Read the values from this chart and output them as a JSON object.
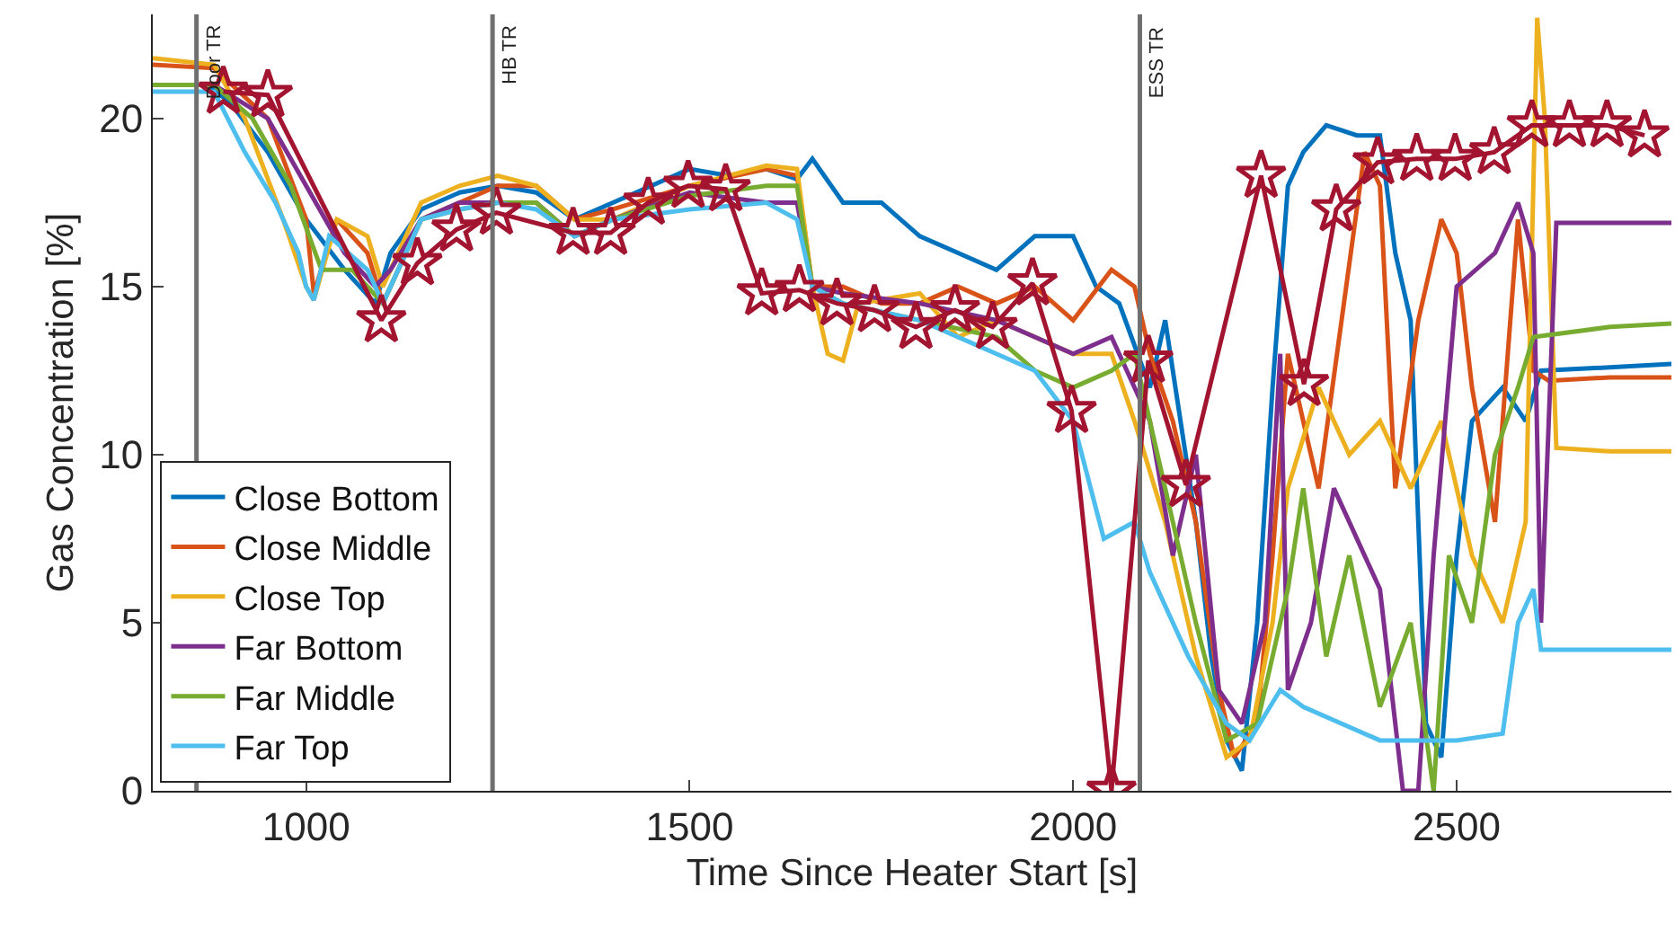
{
  "chart_data": {
    "type": "line",
    "xlabel": "Time Since Heater Start [s]",
    "ylabel": "Gas Concentration [%]",
    "xlim": [
      800,
      2780
    ],
    "xticks": [
      1000,
      1500,
      2000,
      2500
    ],
    "ylim": [
      0,
      23.1
    ],
    "yticks": [
      0,
      5,
      10,
      15,
      20
    ],
    "grid": false,
    "legend": "bottom left",
    "marker": "none",
    "line_style": "solid",
    "ref_lines": [
      {
        "axis": "x",
        "value": 857,
        "label": "Door TR",
        "color": "#707070"
      },
      {
        "axis": "x",
        "value": 1243,
        "label": "HB TR",
        "color": "#707070"
      },
      {
        "axis": "x",
        "value": 2087,
        "label": "ESS TR",
        "color": "#707070"
      }
    ],
    "series": [
      {
        "name": "Close Bottom",
        "color": "#0072bd",
        "x": [
          800,
          870,
          900,
          950,
          1000,
          1050,
          1090,
          1110,
          1150,
          1200,
          1250,
          1300,
          1350,
          1400,
          1450,
          1500,
          1550,
          1600,
          1640,
          1660,
          1700,
          1750,
          1800,
          1850,
          1900,
          1950,
          2000,
          2030,
          2060,
          2100,
          2120,
          2140,
          2160,
          2180,
          2200,
          2220,
          2240,
          2260,
          2280,
          2300,
          2330,
          2370,
          2400,
          2420,
          2440,
          2460,
          2480,
          2500,
          2520,
          2560,
          2590,
          2610,
          2700,
          2780
        ],
        "values": [
          21,
          21,
          20.5,
          19,
          17,
          15.5,
          14.5,
          16,
          17.3,
          17.8,
          18,
          17.8,
          17,
          17.5,
          18,
          18.5,
          18.3,
          18.5,
          18.2,
          18.8,
          17.5,
          17.5,
          16.5,
          16,
          15.5,
          16.5,
          16.5,
          15,
          14.5,
          12,
          14,
          11,
          8,
          4,
          1.5,
          0.6,
          5,
          12,
          18,
          19,
          19.8,
          19.5,
          19.5,
          16,
          14,
          2,
          1,
          7,
          11,
          12,
          11,
          12.5,
          12.6,
          12.7
        ]
      },
      {
        "name": "Close Middle",
        "color": "#d95319",
        "x": [
          800,
          880,
          950,
          1000,
          1010,
          1040,
          1080,
          1100,
          1150,
          1200,
          1250,
          1300,
          1350,
          1400,
          1500,
          1600,
          1640,
          1660,
          1700,
          1750,
          1800,
          1850,
          1900,
          1950,
          2000,
          2050,
          2080,
          2100,
          2130,
          2160,
          2190,
          2210,
          2240,
          2260,
          2280,
          2300,
          2320,
          2350,
          2380,
          2400,
          2420,
          2450,
          2480,
          2500,
          2520,
          2550,
          2580,
          2600,
          2620,
          2700,
          2780
        ],
        "values": [
          21.6,
          21.5,
          20,
          17,
          14.8,
          17,
          16,
          14.5,
          17,
          17.5,
          18,
          18,
          17,
          17.3,
          18,
          18.5,
          18.3,
          15,
          15,
          14.5,
          14.5,
          15,
          14.5,
          15,
          14,
          15.5,
          15,
          13,
          11,
          8,
          3,
          1,
          2,
          7,
          13,
          11,
          9,
          14,
          19,
          18,
          9,
          14,
          17,
          16,
          12,
          8,
          17,
          12.5,
          12.2,
          12.3,
          12.3
        ]
      },
      {
        "name": "Close Top",
        "color": "#edb120",
        "x": [
          800,
          880,
          920,
          970,
          1000,
          1010,
          1040,
          1080,
          1100,
          1150,
          1200,
          1250,
          1300,
          1350,
          1400,
          1500,
          1600,
          1640,
          1660,
          1680,
          1700,
          1720,
          1800,
          1850,
          1900,
          1950,
          2000,
          2050,
          2080,
          2120,
          2160,
          2200,
          2230,
          2260,
          2280,
          2320,
          2360,
          2400,
          2440,
          2480,
          2520,
          2560,
          2590,
          2605,
          2615,
          2630,
          2700,
          2780
        ],
        "values": [
          21.8,
          21.6,
          20,
          17,
          15,
          14.6,
          17,
          16.5,
          15,
          17.5,
          18,
          18.3,
          18,
          17,
          17,
          18,
          18.6,
          18.5,
          15,
          13,
          12.8,
          14.5,
          14.8,
          13.5,
          14,
          13.5,
          13,
          13,
          11,
          8,
          4,
          1,
          1.5,
          5,
          9,
          12,
          10,
          11,
          9,
          11,
          7,
          5,
          8,
          23,
          20,
          10.2,
          10.1,
          10.1
        ]
      },
      {
        "name": "Far Bottom",
        "color": "#7e2f8e",
        "x": [
          800,
          880,
          950,
          1000,
          1050,
          1090,
          1110,
          1150,
          1200,
          1250,
          1300,
          1350,
          1400,
          1500,
          1600,
          1640,
          1660,
          1700,
          1800,
          1900,
          1950,
          2000,
          2050,
          2100,
          2130,
          2160,
          2190,
          2220,
          2250,
          2270,
          2280,
          2310,
          2340,
          2400,
          2430,
          2450,
          2470,
          2500,
          2550,
          2580,
          2600,
          2610,
          2630,
          2700,
          2780
        ],
        "values": [
          21,
          21,
          20,
          18,
          16,
          15,
          15.5,
          17,
          17.5,
          17.5,
          17.5,
          16.5,
          17,
          17.8,
          17.5,
          17.5,
          15,
          14.8,
          14.5,
          14,
          13.5,
          13,
          13.5,
          11,
          7,
          10,
          3,
          2,
          5,
          13,
          3,
          5,
          9,
          6,
          0,
          0,
          7,
          15,
          16,
          17.5,
          16,
          5,
          16.9,
          16.9,
          16.9
        ]
      },
      {
        "name": "Far Middle",
        "color": "#77ac30",
        "x": [
          800,
          880,
          930,
          980,
          1020,
          1060,
          1100,
          1150,
          1200,
          1250,
          1300,
          1350,
          1400,
          1500,
          1600,
          1640,
          1660,
          1700,
          1800,
          1900,
          1950,
          2000,
          2050,
          2080,
          2120,
          2160,
          2200,
          2240,
          2280,
          2300,
          2330,
          2360,
          2400,
          2440,
          2470,
          2490,
          2520,
          2550,
          2580,
          2600,
          2700,
          2780
        ],
        "values": [
          21,
          21,
          20,
          18,
          15.5,
          15.5,
          14.5,
          17,
          17.3,
          17.5,
          17.5,
          16.5,
          17,
          17.7,
          18,
          18,
          15,
          14.5,
          14,
          13.5,
          12.5,
          12,
          12.5,
          13,
          9,
          5,
          1.5,
          2,
          6,
          9,
          4,
          7,
          2.5,
          5,
          0,
          7,
          5,
          10,
          12,
          13.5,
          13.8,
          13.9
        ]
      },
      {
        "name": "Far Top",
        "color": "#4dbeee",
        "x": [
          800,
          880,
          920,
          960,
          990,
          1000,
          1010,
          1030,
          1080,
          1100,
          1150,
          1200,
          1250,
          1300,
          1350,
          1400,
          1500,
          1600,
          1640,
          1660,
          1700,
          1800,
          1900,
          1950,
          2000,
          2040,
          2080,
          2100,
          2150,
          2200,
          2230,
          2270,
          2300,
          2350,
          2400,
          2450,
          2500,
          2560,
          2580,
          2600,
          2610,
          2700,
          2780
        ],
        "values": [
          20.8,
          20.8,
          19,
          17.5,
          16,
          15,
          14.6,
          16.5,
          15.5,
          14.5,
          17,
          17.3,
          17.5,
          17.3,
          16.5,
          17,
          17.3,
          17.5,
          17,
          15,
          14.5,
          14,
          13,
          12.5,
          11,
          7.5,
          8,
          6.5,
          4,
          2,
          1.5,
          3,
          2.5,
          2,
          1.5,
          1.5,
          1.5,
          1.7,
          5,
          6,
          4.2,
          4.2,
          4.2
        ]
      },
      {
        "color": "#a2142f",
        "marker": "star",
        "x": [
          892,
          950,
          1098,
          1145,
          1196,
          1248,
          1348,
          1397,
          1446,
          1498,
          1547,
          1594,
          1643,
          1692,
          1741,
          1795,
          1846,
          1895,
          1947,
          1998,
          2050,
          2098,
          2147,
          2245,
          2301,
          2343,
          2397,
          2448,
          2498,
          2549,
          2598,
          2647,
          2696,
          2745
        ],
        "values": [
          20.8,
          20.7,
          14,
          15.7,
          16.7,
          17.2,
          16.6,
          16.6,
          17.5,
          18,
          17.9,
          14.8,
          14.9,
          14.5,
          14.3,
          13.8,
          14.3,
          13.8,
          15.1,
          11.3,
          0,
          12.8,
          9.1,
          18.3,
          12.1,
          17.3,
          18.7,
          18.8,
          18.8,
          19,
          19.8,
          19.8,
          19.8,
          19.5
        ]
      }
    ]
  }
}
